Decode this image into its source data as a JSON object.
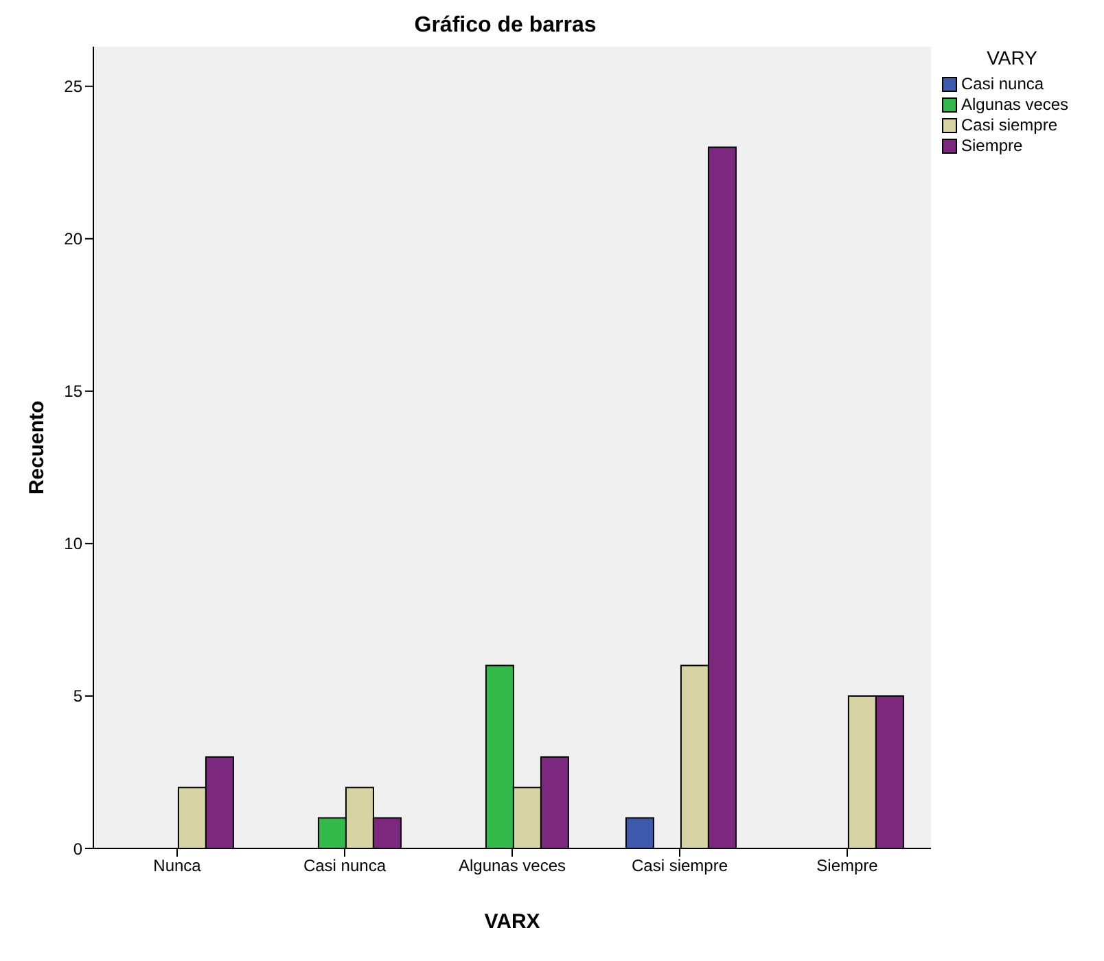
{
  "chart_data": {
    "type": "bar",
    "title": "Gráfico de barras",
    "xlabel": "VARX",
    "ylabel": "Recuento",
    "legend_title": "VARY",
    "categories": [
      "Nunca",
      "Casi nunca",
      "Algunas veces",
      "Casi siempre",
      "Siempre"
    ],
    "series": [
      {
        "name": "Casi nunca",
        "color": "#3e5aad",
        "values": [
          null,
          null,
          null,
          1,
          null
        ]
      },
      {
        "name": "Algunas veces",
        "color": "#33b84a",
        "values": [
          null,
          1,
          6,
          null,
          null
        ]
      },
      {
        "name": "Casi siempre",
        "color": "#d8d3a2",
        "values": [
          2,
          2,
          2,
          6,
          5
        ]
      },
      {
        "name": "Siempre",
        "color": "#7b287e",
        "values": [
          3,
          1,
          3,
          23,
          5
        ]
      }
    ],
    "ylim": [
      0,
      26.3
    ],
    "yticks": [
      0,
      5,
      10,
      15,
      20,
      25
    ],
    "grid": false,
    "legend": "top right"
  }
}
